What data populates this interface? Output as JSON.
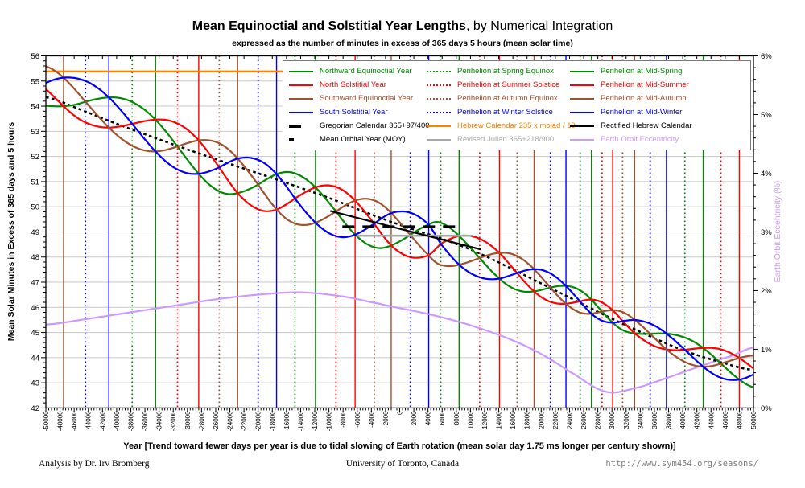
{
  "page": {
    "title_main": "Mean Equinoctial and Solstitial Year Lengths",
    "title_suffix": ", by Numerical Integration",
    "subtitle": "expressed as the number of minutes in excess of 365 days 5 hours (mean solar time)",
    "xaxis_title": "Year [Trend toward fewer days per year is due to tidal slowing of Earth rotation (mean solar day 1.75 ms longer per century shown)]",
    "footer_left": "Analysis by Dr. Irv Bromberg",
    "footer_center": "University of Toronto, Canada",
    "footer_right": "http://www.sym454.org/seasons/"
  },
  "palette": {
    "green": "#008A00",
    "red": "#FF0000",
    "brown": "#A0522D",
    "blue": "#0000FF",
    "black": "#000000",
    "orange": "#FF8000",
    "gray": "#A8A8A8",
    "violet": "#CC99FF",
    "grid": "#C8C8C8",
    "axis": "#000000",
    "legend_border": "#7A7A7A",
    "url_text": "#808080"
  },
  "legend": {
    "rows": [
      [
        {
          "label": "Northward Equinoctial Year",
          "color": "green",
          "style": "solid"
        },
        {
          "label": "Perihelion at Spring Equinox",
          "color": "green",
          "style": "dotted"
        },
        {
          "label": "Perihelion at Mid-Spring",
          "color": "green",
          "style": "solid"
        }
      ],
      [
        {
          "label": "North Solstitial Year",
          "color": "red",
          "style": "solid"
        },
        {
          "label": "Perihelion at Summer Solstice",
          "color": "red",
          "style": "dotted"
        },
        {
          "label": "Perihelion at Mid-Summer",
          "color": "red",
          "style": "solid"
        }
      ],
      [
        {
          "label": "Southward Equinoctial Year",
          "color": "brown",
          "style": "solid"
        },
        {
          "label": "Perihelion at Autumn Equinox",
          "color": "brown",
          "style": "dotted"
        },
        {
          "label": "Perihelion at Mid-Autumn",
          "color": "brown",
          "style": "solid"
        }
      ],
      [
        {
          "label": "South Solstitial Year",
          "color": "blue",
          "style": "solid"
        },
        {
          "label": "Perihelion at Winter Solstice",
          "color": "blue",
          "style": "dotted"
        },
        {
          "label": "Perihelion at Mid-Winter",
          "color": "blue",
          "style": "solid"
        }
      ],
      [
        {
          "label": "Gregorian Calendar 365+97/400",
          "color": "black",
          "style": "dash-bold"
        },
        {
          "label": "Hebrew Calendar 235 x molad / 19",
          "color": "orange",
          "style": "solid"
        },
        {
          "label": "Rectified Hebrew Calendar",
          "color": "black",
          "style": "solid"
        }
      ],
      [
        {
          "label": "Mean Orbital Year (MOY)",
          "color": "black",
          "style": "dot-bold"
        },
        {
          "label": "Revised Julian 365+218/900",
          "color": "gray",
          "style": "solid"
        },
        {
          "label": "Earth Orbit Eccentricity",
          "color": "violet",
          "style": "solid"
        }
      ]
    ]
  },
  "chart_data": {
    "type": "line",
    "title": "Mean Equinoctial and Solstitial Year Lengths, by Numerical Integration",
    "x_axis": {
      "min": -50000,
      "max": 50000,
      "major_step": 2000,
      "minor_step": 400
    },
    "y_axis": {
      "label": "Mean Solar Minutes in Excess of 365 days and 5 hours",
      "min": 42,
      "max": 56,
      "major_step": 1,
      "minor_step": 0.2
    },
    "y2_axis": {
      "label": "Earth Orbit Eccentricity (%)",
      "min": 0,
      "max": 6,
      "major_step": 1,
      "minor_step": 0.2,
      "suffix": "%"
    },
    "braid_center_points": [
      [
        -50000,
        54.8
      ],
      [
        -45000,
        54.25
      ],
      [
        -40000,
        53.6
      ],
      [
        -35000,
        52.9
      ],
      [
        -30000,
        52.2
      ],
      [
        -25000,
        51.5
      ],
      [
        -20000,
        50.88
      ],
      [
        -15000,
        50.35
      ],
      [
        -10000,
        49.9
      ],
      [
        -5000,
        49.45
      ],
      [
        0,
        49.0
      ],
      [
        5000,
        48.6
      ],
      [
        10000,
        48.1
      ],
      [
        15000,
        47.55
      ],
      [
        20000,
        46.95
      ],
      [
        25000,
        46.3
      ],
      [
        30000,
        45.65
      ],
      [
        35000,
        45.0
      ],
      [
        40000,
        44.35
      ],
      [
        45000,
        43.8
      ],
      [
        50000,
        43.45
      ]
    ],
    "amplitude_model": {
      "base": 0.25,
      "ecc_scale": 0.38
    },
    "period_events": [
      {
        "year": -47500,
        "color": "brown",
        "style": "solid"
      },
      {
        "year": -44400,
        "color": "blue",
        "style": "dotted"
      },
      {
        "year": -41100,
        "color": "blue",
        "style": "solid"
      },
      {
        "year": -37800,
        "color": "green",
        "style": "dotted"
      },
      {
        "year": -34500,
        "color": "green",
        "style": "solid"
      },
      {
        "year": -31400,
        "color": "red",
        "style": "dotted"
      },
      {
        "year": -28400,
        "color": "red",
        "style": "solid"
      },
      {
        "year": -25500,
        "color": "brown",
        "style": "dotted"
      },
      {
        "year": -22900,
        "color": "brown",
        "style": "solid"
      },
      {
        "year": -20000,
        "color": "blue",
        "style": "dotted"
      },
      {
        "year": -17400,
        "color": "blue",
        "style": "solid"
      },
      {
        "year": -14800,
        "color": "green",
        "style": "dotted"
      },
      {
        "year": -11900,
        "color": "green",
        "style": "solid"
      },
      {
        "year": -9000,
        "color": "red",
        "style": "dotted"
      },
      {
        "year": -6300,
        "color": "red",
        "style": "solid"
      },
      {
        "year": -3600,
        "color": "brown",
        "style": "dotted"
      },
      {
        "year": -1200,
        "color": "brown",
        "style": "solid"
      },
      {
        "year": 1500,
        "color": "blue",
        "style": "dotted"
      },
      {
        "year": 4100,
        "color": "blue",
        "style": "solid"
      },
      {
        "year": 5800,
        "color": "green",
        "style": "dotted"
      },
      {
        "year": 8400,
        "color": "green",
        "style": "solid"
      },
      {
        "year": 11300,
        "color": "red",
        "style": "dotted"
      },
      {
        "year": 14100,
        "color": "red",
        "style": "solid"
      },
      {
        "year": 16600,
        "color": "brown",
        "style": "dotted"
      },
      {
        "year": 19000,
        "color": "brown",
        "style": "solid"
      },
      {
        "year": 21300,
        "color": "blue",
        "style": "dotted"
      },
      {
        "year": 23500,
        "color": "blue",
        "style": "solid"
      },
      {
        "year": 25500,
        "color": "green",
        "style": "dotted"
      },
      {
        "year": 27100,
        "color": "green",
        "style": "solid"
      },
      {
        "year": 28600,
        "color": "red",
        "style": "dotted"
      },
      {
        "year": 30100,
        "color": "red",
        "style": "solid"
      },
      {
        "year": 31500,
        "color": "brown",
        "style": "dotted"
      },
      {
        "year": 33200,
        "color": "brown",
        "style": "solid"
      },
      {
        "year": 35400,
        "color": "blue",
        "style": "dotted"
      },
      {
        "year": 37700,
        "color": "blue",
        "style": "solid"
      },
      {
        "year": 40300,
        "color": "green",
        "style": "dotted"
      },
      {
        "year": 42900,
        "color": "green",
        "style": "solid"
      },
      {
        "year": 45400,
        "color": "red",
        "style": "dotted"
      },
      {
        "year": 48000,
        "color": "red",
        "style": "solid"
      }
    ],
    "season_curves": [
      {
        "name": "Northward Equinoctial Year",
        "color": "green",
        "phase_offset_deg": 180
      },
      {
        "name": "North Solstitial Year",
        "color": "red",
        "phase_offset_deg": 270
      },
      {
        "name": "Southward Equinoctial Year",
        "color": "brown",
        "phase_offset_deg": 0
      },
      {
        "name": "South Solstitial Year",
        "color": "blue",
        "phase_offset_deg": 90
      }
    ],
    "mean_orbital_year_points": [
      [
        -50000,
        54.36
      ],
      [
        -45000,
        53.85
      ],
      [
        -40000,
        53.3
      ],
      [
        -35000,
        52.78
      ],
      [
        -30000,
        52.28
      ],
      [
        -25000,
        51.8
      ],
      [
        -20000,
        51.33
      ],
      [
        -15000,
        50.85
      ],
      [
        -10000,
        50.35
      ],
      [
        -5000,
        49.8
      ],
      [
        0,
        49.28
      ],
      [
        5000,
        48.82
      ],
      [
        10000,
        48.3
      ],
      [
        15000,
        47.65
      ],
      [
        20000,
        46.95
      ],
      [
        25000,
        46.25
      ],
      [
        30000,
        45.55
      ],
      [
        35000,
        44.9
      ],
      [
        40000,
        44.3
      ],
      [
        45000,
        43.85
      ],
      [
        50000,
        43.5
      ]
    ],
    "eccentricity_points_pct": [
      [
        -50000,
        1.42
      ],
      [
        -44000,
        1.52
      ],
      [
        -38000,
        1.63
      ],
      [
        -32000,
        1.74
      ],
      [
        -26000,
        1.85
      ],
      [
        -20000,
        1.93
      ],
      [
        -14000,
        1.97
      ],
      [
        -8000,
        1.9
      ],
      [
        -3000,
        1.78
      ],
      [
        0,
        1.7
      ],
      [
        4000,
        1.6
      ],
      [
        8000,
        1.48
      ],
      [
        12000,
        1.33
      ],
      [
        16000,
        1.15
      ],
      [
        20000,
        0.92
      ],
      [
        24000,
        0.62
      ],
      [
        29000,
        0.28
      ],
      [
        33000,
        0.33
      ],
      [
        38000,
        0.52
      ],
      [
        43000,
        0.73
      ],
      [
        47000,
        0.89
      ],
      [
        50000,
        1.03
      ]
    ],
    "calendar_lines": {
      "hebrew": {
        "label": "Hebrew Calendar 235 x molad / 19",
        "value": 55.38,
        "from": -50000,
        "to": -16000
      },
      "gregorian": {
        "label": "Gregorian Calendar 365+97/400",
        "value": 49.2,
        "from": -8100,
        "to": 8700
      },
      "revised_julian": {
        "label": "Revised Julian 365+218/900",
        "value": 48.85,
        "from": -6100,
        "to": 10300
      },
      "rectified_hebrew": {
        "label": "Rectified Hebrew Calendar",
        "from": [
          -9800,
          49.83
        ],
        "to": [
          11500,
          48.3
        ]
      }
    }
  }
}
